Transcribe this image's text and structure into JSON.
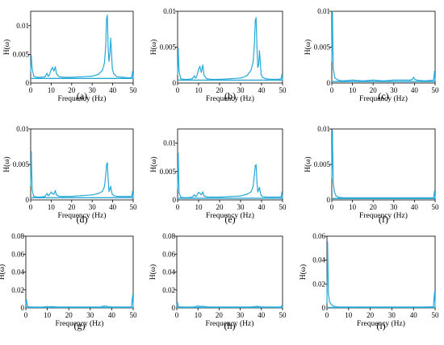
{
  "chart_data": [
    {
      "type": "line",
      "panel_label": "(a)",
      "xlabel": "Frequency (Hz)",
      "ylabel": "H(ω)",
      "xlim": [
        0,
        50
      ],
      "ylim": [
        0,
        0.0125
      ],
      "xticks": [
        "0",
        "10",
        "20",
        "30",
        "40",
        "50"
      ],
      "yticks": [
        {
          "v": 0.005,
          "t": "0.005"
        },
        {
          "v": 0.01,
          "t": "0.01"
        }
      ],
      "series": [
        {
          "color": "#29a9d8",
          "baseline": 0.0008,
          "x": [
            0,
            0.3,
            0.7,
            1.5,
            3,
            5,
            7,
            8,
            8.5,
            9,
            10,
            10.6,
            11.3,
            12,
            12.6,
            13.3,
            14,
            16,
            20,
            25,
            30,
            33,
            35,
            36,
            36.6,
            37,
            37.4,
            37.8,
            38.2,
            38.6,
            39,
            39.4,
            39.8,
            40.5,
            42,
            45,
            48,
            49.3,
            49.7,
            50
          ],
          "y": [
            0.002,
            0.0048,
            0.0025,
            0.0012,
            0.001,
            0.001,
            0.0011,
            0.0017,
            0.0012,
            0.0013,
            0.0023,
            0.0027,
            0.0021,
            0.0028,
            0.0016,
            0.0013,
            0.0011,
            0.001,
            0.001,
            0.0011,
            0.0012,
            0.0015,
            0.0022,
            0.0035,
            0.0065,
            0.0112,
            0.0118,
            0.006,
            0.0038,
            0.005,
            0.0078,
            0.0055,
            0.0025,
            0.0016,
            0.0011,
            0.001,
            0.0009,
            0.001,
            0.002,
            0.0008
          ]
        }
      ]
    },
    {
      "type": "line",
      "panel_label": "(b)",
      "xlabel": "Frequency (Hz)",
      "ylabel": "H(ω)",
      "xlim": [
        0,
        50
      ],
      "ylim": [
        0,
        0.01
      ],
      "xticks": [
        "0",
        "10",
        "20",
        "30",
        "40",
        "50"
      ],
      "yticks": [
        {
          "v": 0.005,
          "t": "0.005"
        },
        {
          "v": 0.01,
          "t": "0.01"
        }
      ],
      "series": [
        {
          "color": "#29a9d8",
          "baseline": 0.0004,
          "x": [
            0,
            0.3,
            0.7,
            1.5,
            3,
            5,
            7,
            8,
            8.5,
            9,
            10,
            10.6,
            11.3,
            12,
            12.6,
            13.3,
            14,
            16,
            20,
            25,
            30,
            33,
            35,
            36,
            36.6,
            37,
            37.4,
            37.8,
            38.2,
            38.6,
            39,
            39.4,
            39.8,
            40.5,
            42,
            45,
            48,
            49.3,
            49.7,
            50
          ],
          "y": [
            0.0012,
            0.0048,
            0.0016,
            0.0006,
            0.0005,
            0.0005,
            0.0006,
            0.001,
            0.0007,
            0.0008,
            0.0019,
            0.0023,
            0.0015,
            0.0025,
            0.0011,
            0.0008,
            0.0006,
            0.0005,
            0.0005,
            0.0006,
            0.0007,
            0.001,
            0.0018,
            0.003,
            0.0055,
            0.0087,
            0.0091,
            0.005,
            0.0022,
            0.0025,
            0.0045,
            0.003,
            0.0012,
            0.0008,
            0.0006,
            0.0005,
            0.0005,
            0.0006,
            0.0012,
            0.0004
          ]
        }
      ]
    },
    {
      "type": "line",
      "panel_label": "(c)",
      "xlabel": "Frequency (Hz)",
      "ylabel": "H(ω)",
      "xlim": [
        0,
        50
      ],
      "ylim": [
        0,
        0.01
      ],
      "xticks": [
        "0",
        "10",
        "20",
        "30",
        "40",
        "50"
      ],
      "yticks": [
        {
          "v": 0.005,
          "t": "0.005"
        },
        {
          "v": 0.01,
          "t": "0.01"
        }
      ],
      "series": [
        {
          "color": "#29a9d8",
          "baseline": 0.0002,
          "x": [
            0,
            0.3,
            0.7,
            1.5,
            3,
            5,
            10,
            15,
            20,
            25,
            30,
            35,
            38,
            39,
            39.6,
            40.2,
            41,
            45,
            49.3,
            49.7,
            50
          ],
          "y": [
            0.003,
            0.01,
            0.002,
            0.0007,
            0.0004,
            0.0003,
            0.0004,
            0.0003,
            0.0004,
            0.0003,
            0.0004,
            0.0004,
            0.0004,
            0.0005,
            0.0008,
            0.0005,
            0.0004,
            0.0003,
            0.0004,
            0.0016,
            0.0003
          ]
        }
      ]
    },
    {
      "type": "line",
      "panel_label": "(d)",
      "xlabel": "Frequency (Hz)",
      "ylabel": "H(ω)",
      "xlim": [
        0,
        50
      ],
      "ylim": [
        0,
        0.01
      ],
      "xticks": [
        "0",
        "10",
        "20",
        "30",
        "40",
        "50"
      ],
      "yticks": [
        {
          "v": 0.005,
          "t": "0.005"
        },
        {
          "v": 0.01,
          "t": "0.01"
        }
      ],
      "series": [
        {
          "color": "#29a9d8",
          "baseline": 0.0003,
          "x": [
            0,
            0.3,
            0.7,
            1.5,
            3,
            5,
            7,
            8,
            8.5,
            9,
            10,
            10.6,
            11.3,
            12,
            12.6,
            13.3,
            14,
            16,
            20,
            25,
            30,
            33,
            35,
            36,
            36.6,
            37,
            37.4,
            37.8,
            38.2,
            38.6,
            39,
            39.4,
            39.8,
            40.5,
            42,
            45,
            48,
            49.3,
            49.7,
            50
          ],
          "y": [
            0.002,
            0.0068,
            0.0014,
            0.0005,
            0.0004,
            0.0004,
            0.0005,
            0.0009,
            0.0006,
            0.0007,
            0.0011,
            0.0009,
            0.0008,
            0.0013,
            0.0007,
            0.0006,
            0.0005,
            0.0005,
            0.0005,
            0.0006,
            0.0007,
            0.0009,
            0.0012,
            0.0019,
            0.0035,
            0.005,
            0.0052,
            0.0028,
            0.0012,
            0.0015,
            0.0019,
            0.0012,
            0.0008,
            0.0006,
            0.0005,
            0.0005,
            0.0005,
            0.0005,
            0.0012,
            0.0003
          ]
        }
      ]
    },
    {
      "type": "line",
      "panel_label": "(e)",
      "xlabel": "Frequency (Hz)",
      "ylabel": "H(ω)",
      "xlim": [
        0,
        50
      ],
      "ylim": [
        0,
        0.0125
      ],
      "xticks": [
        "0",
        "10",
        "20",
        "30",
        "40",
        "50"
      ],
      "yticks": [
        {
          "v": 0.005,
          "t": "0.005"
        },
        {
          "v": 0.01,
          "t": "0.01"
        }
      ],
      "series": [
        {
          "color": "#29a9d8",
          "baseline": 0.0003,
          "x": [
            0,
            0.3,
            0.7,
            1.5,
            3,
            5,
            7,
            8,
            8.5,
            9,
            10,
            10.6,
            11.3,
            12,
            12.6,
            13.3,
            14,
            16,
            20,
            25,
            30,
            33,
            35,
            36,
            36.6,
            37,
            37.4,
            37.8,
            38.2,
            38.6,
            39,
            39.4,
            39.8,
            40.5,
            42,
            45,
            48,
            49.3,
            49.7,
            50
          ],
          "y": [
            0.002,
            0.0082,
            0.0012,
            0.0005,
            0.0004,
            0.0004,
            0.0005,
            0.0009,
            0.0006,
            0.0007,
            0.0013,
            0.0012,
            0.0009,
            0.0014,
            0.0007,
            0.0006,
            0.0005,
            0.0005,
            0.0005,
            0.0006,
            0.0007,
            0.001,
            0.0014,
            0.0024,
            0.0045,
            0.006,
            0.0062,
            0.0032,
            0.0014,
            0.0018,
            0.0022,
            0.0014,
            0.0008,
            0.0006,
            0.0005,
            0.0005,
            0.0005,
            0.0005,
            0.0014,
            0.0003
          ]
        }
      ]
    },
    {
      "type": "line",
      "panel_label": "(f)",
      "xlabel": "Frequency (Hz)",
      "ylabel": "H(ω)",
      "xlim": [
        0,
        50
      ],
      "ylim": [
        0,
        0.01
      ],
      "xticks": [
        "0",
        "10",
        "20",
        "30",
        "40",
        "50"
      ],
      "yticks": [
        {
          "v": 0.005,
          "t": "0.005"
        },
        {
          "v": 0.01,
          "t": "0.01"
        }
      ],
      "series": [
        {
          "color": "#29a9d8",
          "baseline": 0.0002,
          "x": [
            0,
            0.3,
            0.7,
            1.2,
            2,
            3,
            5,
            10,
            15,
            20,
            25,
            30,
            35,
            40,
            45,
            49.3,
            49.7,
            50
          ],
          "y": [
            0.003,
            0.0098,
            0.0025,
            0.0012,
            0.0006,
            0.0004,
            0.0003,
            0.0003,
            0.0003,
            0.0003,
            0.0003,
            0.0003,
            0.0003,
            0.0003,
            0.0003,
            0.0003,
            0.0012,
            0.0002
          ]
        }
      ]
    },
    {
      "type": "line",
      "panel_label": "(g)",
      "xlabel": "Frequency (Hz)",
      "ylabel": "H(ω)",
      "xlim": [
        0,
        50
      ],
      "ylim": [
        0,
        0.08
      ],
      "xticks": [
        "0",
        "10",
        "20",
        "30",
        "40",
        "50"
      ],
      "yticks": [
        {
          "v": 0.02,
          "t": "0.02"
        },
        {
          "v": 0.04,
          "t": "0.04"
        },
        {
          "v": 0.06,
          "t": "0.06"
        },
        {
          "v": 0.08,
          "t": "0.08"
        }
      ],
      "series": [
        {
          "color": "#29a9d8",
          "baseline": 0.0005,
          "x": [
            0,
            0.3,
            0.7,
            1.5,
            3,
            5,
            8,
            10,
            11,
            12,
            15,
            20,
            25,
            30,
            35,
            36,
            37,
            38,
            40,
            45,
            48,
            49.2,
            49.5,
            49.8,
            50
          ],
          "y": [
            0.004,
            0.009,
            0.002,
            0.0012,
            0.001,
            0.0009,
            0.001,
            0.0015,
            0.0012,
            0.0014,
            0.001,
            0.0011,
            0.001,
            0.0011,
            0.0012,
            0.0018,
            0.0022,
            0.0015,
            0.0011,
            0.001,
            0.001,
            0.0012,
            0.0085,
            0.015,
            0.001
          ]
        }
      ]
    },
    {
      "type": "line",
      "panel_label": "(h)",
      "xlabel": "Frequency (Hz)",
      "ylabel": "H(ω)",
      "xlim": [
        0,
        50
      ],
      "ylim": [
        0,
        0.08
      ],
      "xticks": [
        "0",
        "10",
        "20",
        "30",
        "40",
        "50"
      ],
      "yticks": [
        {
          "v": 0.02,
          "t": "0.02"
        },
        {
          "v": 0.04,
          "t": "0.04"
        },
        {
          "v": 0.06,
          "t": "0.06"
        },
        {
          "v": 0.08,
          "t": "0.08"
        }
      ],
      "series": [
        {
          "color": "#29a9d8",
          "baseline": 0.0005,
          "x": [
            0,
            0.3,
            0.7,
            1.5,
            3,
            5,
            8,
            10,
            11,
            12,
            15,
            20,
            25,
            30,
            35,
            37,
            38,
            40,
            45,
            49.3,
            49.7,
            50
          ],
          "y": [
            0.003,
            0.006,
            0.0015,
            0.001,
            0.001,
            0.0009,
            0.001,
            0.0022,
            0.0016,
            0.0019,
            0.0011,
            0.001,
            0.0011,
            0.001,
            0.0011,
            0.0015,
            0.0018,
            0.0011,
            0.001,
            0.001,
            0.0025,
            0.0006
          ]
        }
      ]
    },
    {
      "type": "line",
      "panel_label": "(i)",
      "xlabel": "Frequency (Hz)",
      "ylabel": "H(ω)",
      "xlim": [
        0,
        50
      ],
      "ylim": [
        0,
        0.06
      ],
      "xticks": [
        "0",
        "10",
        "20",
        "30",
        "40",
        "50"
      ],
      "yticks": [
        {
          "v": 0.02,
          "t": "0.02"
        },
        {
          "v": 0.04,
          "t": "0.04"
        },
        {
          "v": 0.06,
          "t": "0.06"
        }
      ],
      "series": [
        {
          "color": "#29a9d8",
          "baseline": 0.0004,
          "x": [
            0,
            0.3,
            0.7,
            1.2,
            2,
            3,
            5,
            10,
            15,
            20,
            25,
            30,
            35,
            40,
            45,
            49.2,
            49.5,
            49.8,
            50
          ],
          "y": [
            0.004,
            0.055,
            0.012,
            0.005,
            0.003,
            0.0015,
            0.0009,
            0.0008,
            0.0008,
            0.0008,
            0.0008,
            0.0008,
            0.0008,
            0.0008,
            0.0008,
            0.001,
            0.009,
            0.014,
            0.0008
          ]
        }
      ]
    }
  ]
}
